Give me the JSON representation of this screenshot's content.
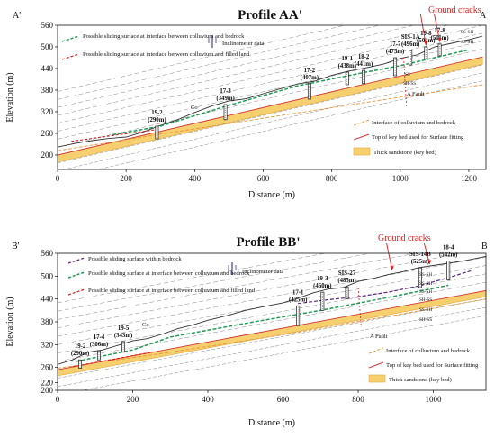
{
  "chart_data": [
    {
      "type": "line",
      "title": "Profile AA'",
      "xlabel": "Distance (m)",
      "ylabel": "Elevation (m)",
      "xlim": [
        0,
        1250
      ],
      "ylim": [
        160,
        560
      ],
      "x_ticks": [
        0,
        200,
        400,
        600,
        800,
        1000,
        1200
      ],
      "y_ticks": [
        200,
        260,
        320,
        380,
        440,
        500,
        560
      ],
      "corner_labels": [
        "A'",
        "A"
      ],
      "series": [
        {
          "role": "ground",
          "x": [
            0,
            50,
            100,
            150,
            200,
            250,
            300,
            350,
            400,
            450,
            500,
            550,
            600,
            650,
            700,
            750,
            800,
            850,
            900,
            950,
            1000,
            1050,
            1100,
            1150,
            1200,
            1240
          ],
          "y": [
            222,
            232,
            240,
            246,
            250,
            264,
            282,
            298,
            318,
            336,
            350,
            356,
            370,
            384,
            397,
            405,
            421,
            433,
            442,
            452,
            468,
            478,
            500,
            510,
            520,
            530
          ]
        },
        {
          "role": "interface-colluvium-bedrock",
          "x": [
            0,
            300,
            600,
            900,
            1240
          ],
          "y": [
            212,
            258,
            302,
            346,
            395
          ]
        },
        {
          "role": "key-bed-top",
          "x": [
            0,
            1240
          ],
          "y": [
            200,
            472
          ]
        },
        {
          "role": "key-bed-bottom",
          "x": [
            0,
            1240
          ],
          "y": [
            180,
            452
          ]
        },
        {
          "role": "sliding-colluvium-bedrock",
          "x": [
            160,
            300,
            500,
            700,
            900,
            1000,
            1100,
            1200
          ],
          "y": [
            256,
            280,
            338,
            392,
            430,
            448,
            470,
            492
          ]
        },
        {
          "role": "sliding-colluvium-filled-land",
          "x": [
            40,
            160,
            300
          ],
          "y": [
            238,
            254,
            272
          ]
        }
      ],
      "boreholes": [
        {
          "name": "19-2",
          "elev": "(290m)",
          "x": 290,
          "top": 280,
          "bottom": 245
        },
        {
          "name": "17-3",
          "elev": "(349m)",
          "x": 490,
          "top": 340,
          "bottom": 298
        },
        {
          "name": "17-2",
          "elev": "(407m)",
          "x": 735,
          "top": 398,
          "bottom": 355
        },
        {
          "name": "19-1",
          "elev": "(438m)",
          "x": 845,
          "top": 430,
          "bottom": 395
        },
        {
          "name": "18-2",
          "elev": "(441m)",
          "x": 893,
          "top": 435,
          "bottom": 398
        },
        {
          "name": "17-7",
          "elev": "(475m)",
          "x": 985,
          "top": 470,
          "bottom": 420
        },
        {
          "name": "SIS-1A",
          "elev": "(496m)",
          "x": 1030,
          "top": 490,
          "bottom": 450
        },
        {
          "name": "19-8",
          "elev": "(504m)",
          "x": 1075,
          "top": 500,
          "bottom": 466
        },
        {
          "name": "17-8",
          "elev": "(511m)",
          "x": 1115,
          "top": 508,
          "bottom": 475
        }
      ],
      "annotations": [
        "Ground cracks",
        "Inclinometer data",
        "A Fault",
        "Co",
        "SS-SH",
        "SS-SH",
        "SS",
        "SH-SS"
      ],
      "legend": [
        "Possible sliding surface at interface between colluvium and bedrock",
        "Possible sliding surface at interface between colluvium and filled land",
        "Interface of colluvium and bedrock",
        "Top of key bed used for Surface fitting",
        "Thick sandstone (key bed)"
      ]
    },
    {
      "type": "line",
      "title": "Profile BB'",
      "xlabel": "Distance (m)",
      "ylabel": "Elevation (m)",
      "xlim": [
        0,
        1140
      ],
      "ylim": [
        200,
        560
      ],
      "x_ticks": [
        0,
        200,
        400,
        600,
        800,
        1000
      ],
      "y_ticks": [
        200,
        220,
        260,
        320,
        380,
        440,
        500,
        560
      ],
      "corner_labels": [
        "B'",
        "B"
      ],
      "series": [
        {
          "role": "ground",
          "x": [
            0,
            40,
            80,
            120,
            160,
            200,
            240,
            280,
            320,
            360,
            400,
            450,
            500,
            550,
            600,
            640,
            680,
            720,
            760,
            800,
            840,
            880,
            920,
            960,
            1000,
            1040,
            1080,
            1140
          ],
          "y": [
            268,
            280,
            300,
            306,
            318,
            330,
            336,
            348,
            362,
            372,
            384,
            396,
            410,
            420,
            430,
            442,
            456,
            466,
            470,
            486,
            494,
            504,
            512,
            522,
            528,
            534,
            540,
            552
          ]
        },
        {
          "role": "interface-colluvium-bedrock",
          "x": [
            0,
            300,
            600,
            900,
            1140
          ],
          "y": [
            258,
            300,
            346,
            398,
            440
          ]
        },
        {
          "role": "key-bed-top",
          "x": [
            0,
            1140
          ],
          "y": [
            254,
            462
          ]
        },
        {
          "role": "key-bed-bottom",
          "x": [
            0,
            1140
          ],
          "y": [
            238,
            446
          ]
        },
        {
          "role": "sliding-within-bedrock",
          "x": [
            640,
            720,
            800,
            880,
            960,
            1040,
            1100
          ],
          "y": [
            428,
            438,
            446,
            458,
            474,
            496,
            514
          ]
        },
        {
          "role": "sliding-colluvium-bedrock",
          "x": [
            50,
            200,
            300,
            500,
            700,
            900,
            1040
          ],
          "y": [
            276,
            306,
            340,
            376,
            410,
            448,
            476
          ]
        },
        {
          "role": "sliding-colluvium-filled-land",
          "x": [
            40,
            150,
            250
          ],
          "y": [
            262,
            282,
            300
          ]
        }
      ],
      "boreholes": [
        {
          "name": "19-2",
          "elev": "(290m)",
          "x": 60,
          "top": 280,
          "bottom": 258
        },
        {
          "name": "17-4",
          "elev": "(306m)",
          "x": 110,
          "top": 304,
          "bottom": 280
        },
        {
          "name": "19-5",
          "elev": "(343m)",
          "x": 175,
          "top": 328,
          "bottom": 300
        },
        {
          "name": "17-1",
          "elev": "(425m)",
          "x": 640,
          "top": 422,
          "bottom": 370
        },
        {
          "name": "19-3",
          "elev": "(460m)",
          "x": 705,
          "top": 458,
          "bottom": 410
        },
        {
          "name": "SIS-27",
          "elev": "(485m)",
          "x": 770,
          "top": 472,
          "bottom": 440
        },
        {
          "name": "SIS-14B",
          "elev": "(525m)",
          "x": 965,
          "top": 522,
          "bottom": 470
        },
        {
          "name": "18-4",
          "elev": "(542m)",
          "x": 1040,
          "top": 540,
          "bottom": 490
        }
      ],
      "annotations": [
        "Ground cracks",
        "Inclinometer data",
        "A Fault",
        "Co",
        "SS-SH",
        "SS-SH",
        "SS-SH",
        "SH-SS",
        "SS-SH",
        "SH-SS"
      ],
      "legend": [
        "Possible sliding surface within bedrock",
        "Possible sliding surface at interface between colluvium and bedrock",
        "Possible sliding surface at interface between colluvium and filled land",
        "Interface of colluvium and bedrock",
        "Top of key bed used for Surface fitting",
        "Thick sandstone (key bed)"
      ]
    }
  ],
  "colors": {
    "ground": "#333333",
    "key_bed": "#f6cf6e",
    "key_bed_edge": "#e2a93a",
    "colluvium_interface": "#e8953a",
    "key_bed_top": "#d23a3a",
    "sliding_colluvium_bedrock": "#1f9b55",
    "sliding_filled_land": "#d62020",
    "sliding_within_bedrock": "#5b2a86",
    "ground_cracks": "#d62020",
    "borehole": "#1a1a1a"
  }
}
